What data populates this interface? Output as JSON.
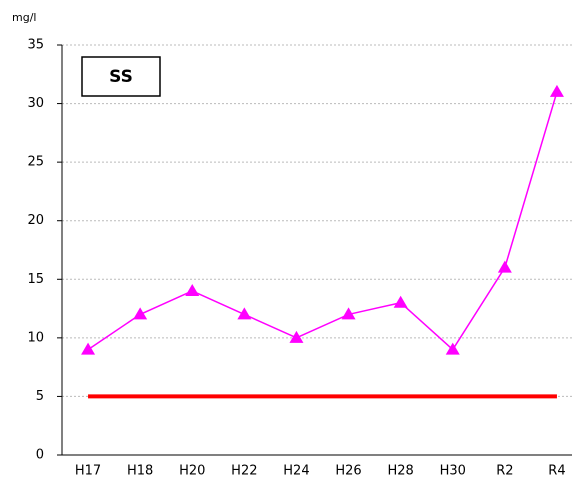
{
  "chart_data": {
    "type": "line",
    "title": "SS",
    "y_label": "mg/l",
    "categories": [
      "H17",
      "H18",
      "H20",
      "H22",
      "H24",
      "H26",
      "H28",
      "H30",
      "R2",
      "R4"
    ],
    "series": [
      {
        "color": "#ff00ff",
        "marker": "triangle",
        "values": [
          9,
          12,
          14,
          12,
          10,
          12,
          13,
          9,
          16,
          31
        ]
      },
      {
        "color": "#ff0000",
        "marker": "none",
        "values": [
          5,
          5,
          5,
          5,
          5,
          5,
          5,
          5,
          5,
          5
        ]
      }
    ],
    "ylim": [
      0,
      35
    ],
    "yticks": [
      0,
      5,
      10,
      15,
      20,
      25,
      30,
      35
    ],
    "grid": true
  }
}
